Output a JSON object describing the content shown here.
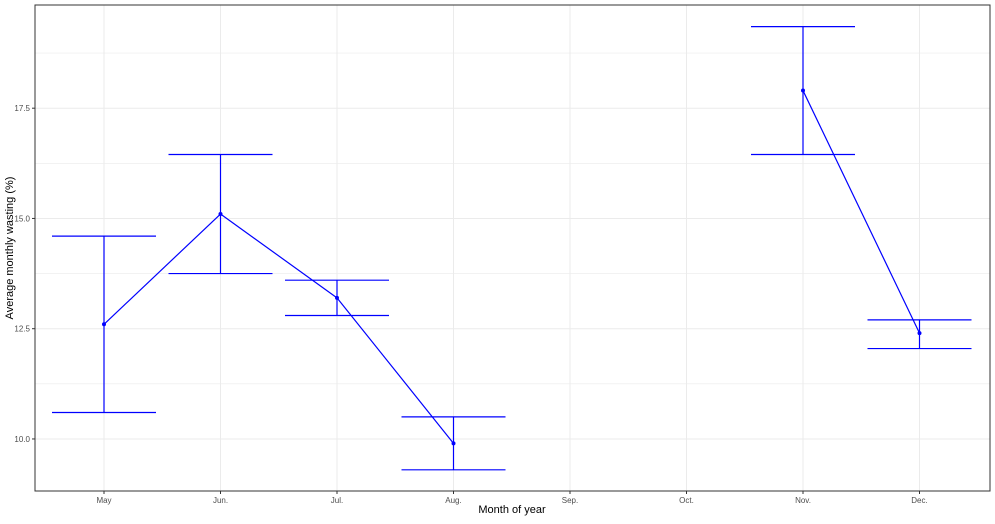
{
  "chart_data": {
    "type": "line",
    "title": "",
    "xlabel": "Month of year",
    "ylabel": "Average monthly wasting (%)",
    "categories": [
      "May",
      "Jun.",
      "Jul.",
      "Aug.",
      "Sep.",
      "Oct.",
      "Nov.",
      "Dec."
    ],
    "ylim": [
      8.82,
      19.84
    ],
    "yticks": [
      "10.0",
      "12.5",
      "15.0",
      "17.5"
    ],
    "grid": true,
    "legend": "none",
    "color": "#0000ff",
    "series": [
      {
        "values": [
          12.6,
          15.1,
          13.2,
          9.9,
          null,
          null,
          17.9,
          12.4
        ],
        "lower": [
          10.6,
          13.75,
          12.8,
          9.3,
          null,
          null,
          16.45,
          12.05
        ],
        "upper": [
          14.6,
          16.45,
          13.6,
          10.5,
          null,
          null,
          19.35,
          12.7
        ]
      }
    ]
  }
}
